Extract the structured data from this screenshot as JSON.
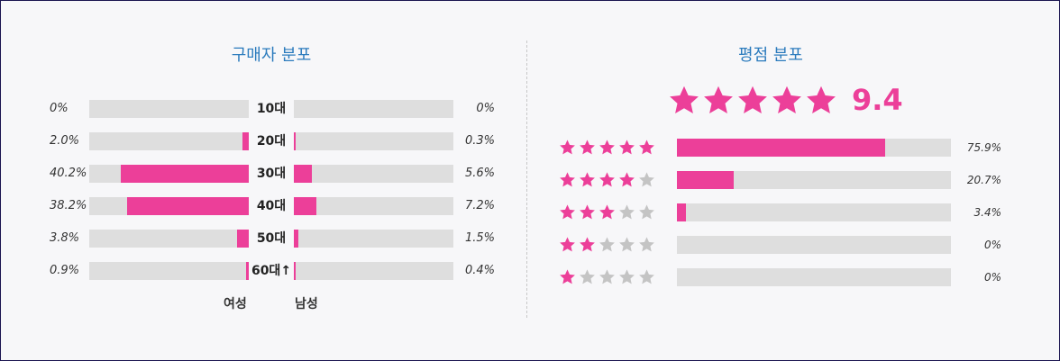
{
  "colors": {
    "accent": "#ec3f99",
    "title": "#2b7bbd",
    "track": "#dedede",
    "star_empty": "#c4c4c4"
  },
  "buyer_dist": {
    "title": "구매자 분포",
    "female_label": "여성",
    "male_label": "남성",
    "rows": [
      {
        "age": "10대",
        "female_text": "0%",
        "female_value": 0,
        "male_text": "0%",
        "male_value": 0
      },
      {
        "age": "20대",
        "female_text": "2.0%",
        "female_value": 2.0,
        "male_text": "0.3%",
        "male_value": 0.3
      },
      {
        "age": "30대",
        "female_text": "40.2%",
        "female_value": 40.2,
        "male_text": "5.6%",
        "male_value": 5.6
      },
      {
        "age": "40대",
        "female_text": "38.2%",
        "female_value": 38.2,
        "male_text": "7.2%",
        "male_value": 7.2
      },
      {
        "age": "50대",
        "female_text": "3.8%",
        "female_value": 3.8,
        "male_text": "1.5%",
        "male_value": 1.5
      },
      {
        "age": "60대↑",
        "female_text": "0.9%",
        "female_value": 0.9,
        "male_text": "0.4%",
        "male_value": 0.4
      }
    ]
  },
  "rating_dist": {
    "title": "평점 분포",
    "score": "9.4",
    "overall_stars": 5,
    "rows": [
      {
        "stars": 5,
        "text": "75.9%",
        "value": 75.9
      },
      {
        "stars": 4,
        "text": "20.7%",
        "value": 20.7
      },
      {
        "stars": 3,
        "text": "3.4%",
        "value": 3.4
      },
      {
        "stars": 2,
        "text": "0%",
        "value": 0
      },
      {
        "stars": 1,
        "text": "0%",
        "value": 0
      }
    ]
  }
}
